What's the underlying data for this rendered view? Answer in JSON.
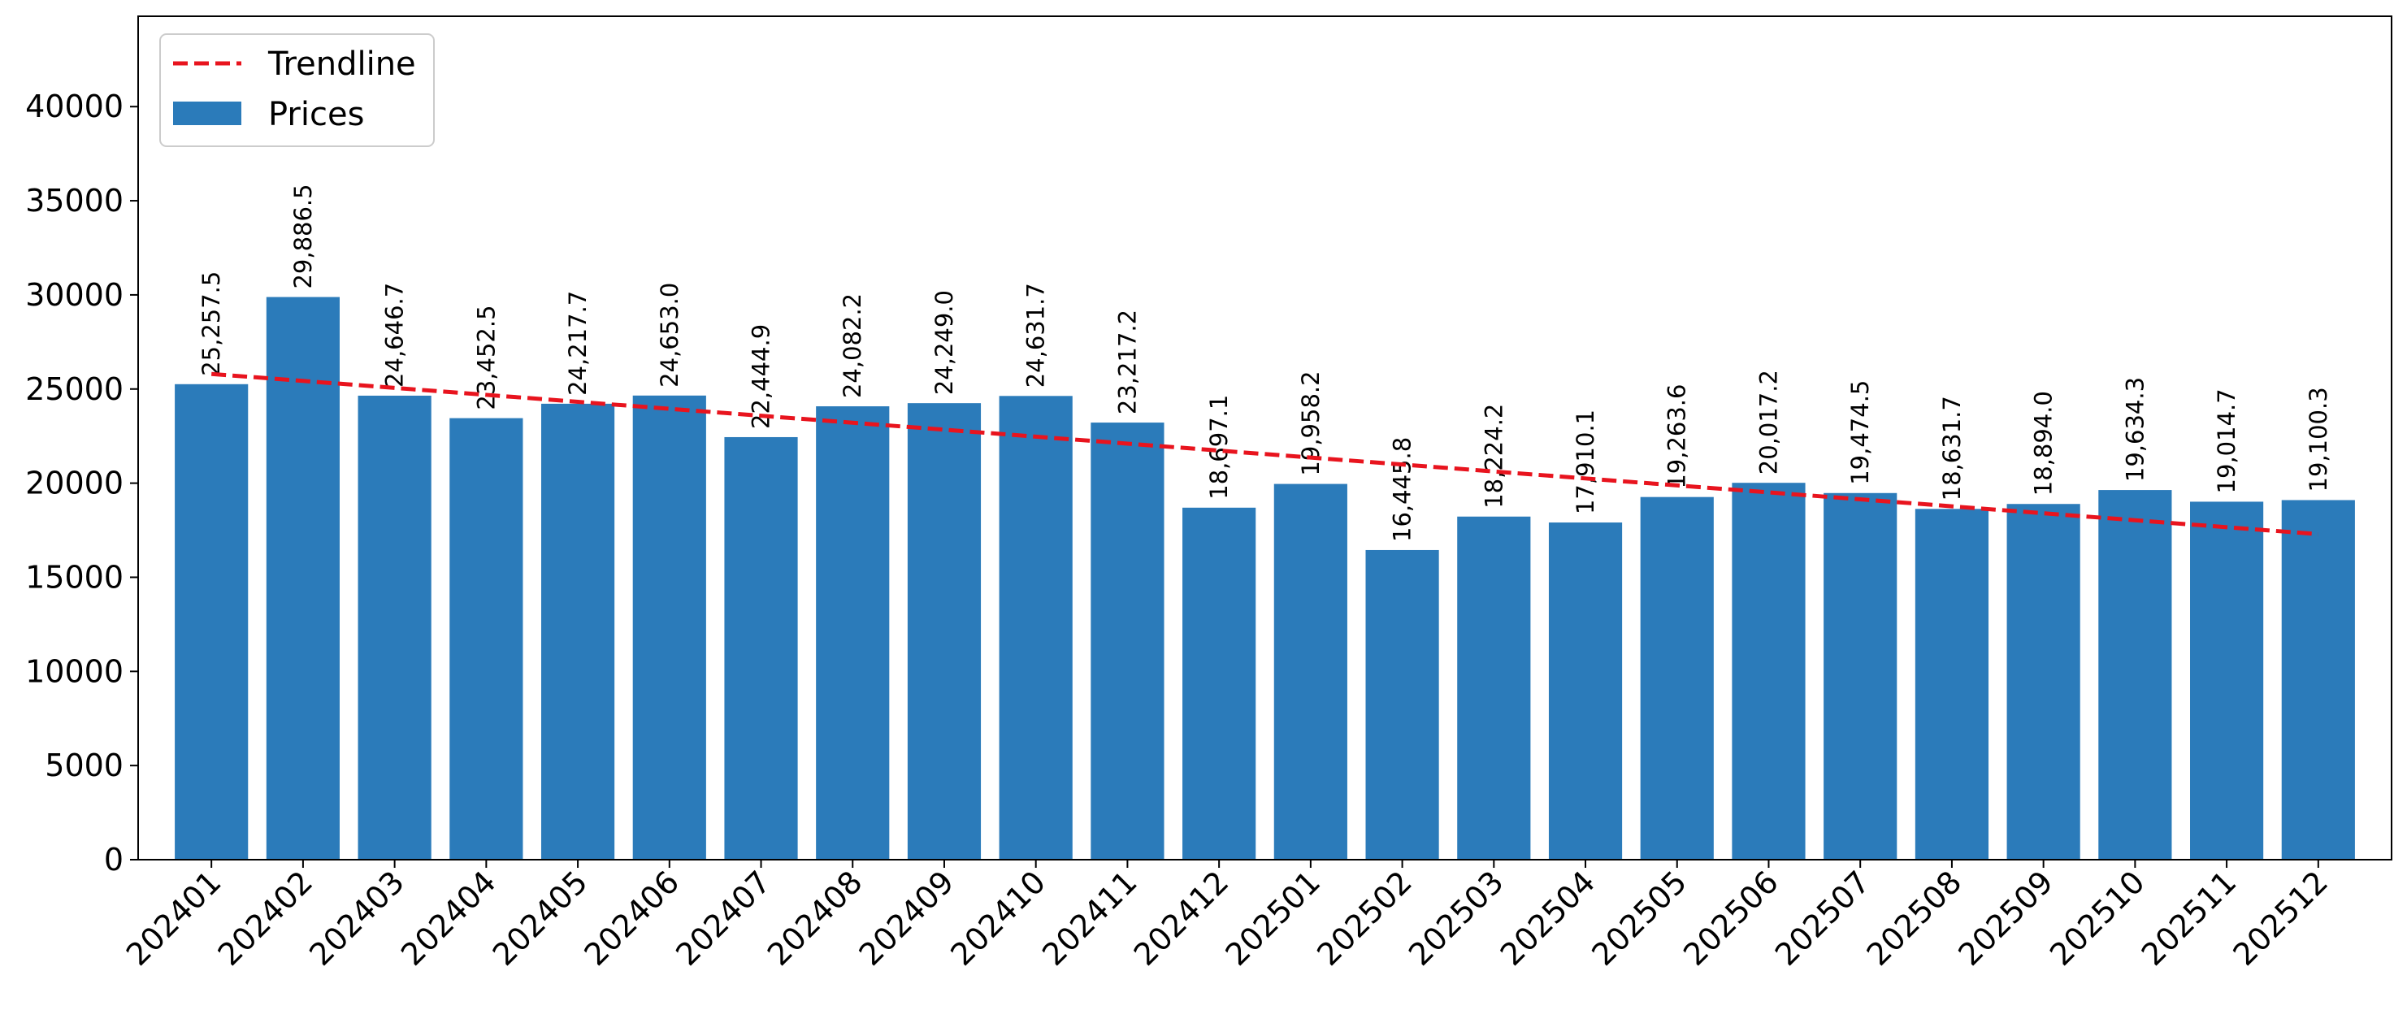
{
  "chart_data": {
    "type": "bar",
    "categories": [
      "202401",
      "202402",
      "202403",
      "202404",
      "202405",
      "202406",
      "202407",
      "202408",
      "202409",
      "202410",
      "202411",
      "202412",
      "202501",
      "202502",
      "202503",
      "202504",
      "202505",
      "202506",
      "202507",
      "202508",
      "202509",
      "202510",
      "202511",
      "202512"
    ],
    "series": [
      {
        "name": "Prices",
        "type": "bar",
        "color": "#2b7bba",
        "values": [
          25257.5,
          29886.5,
          24646.7,
          23452.5,
          24217.7,
          24653.0,
          22444.9,
          24082.2,
          24249.0,
          24631.7,
          23217.2,
          18697.1,
          19958.2,
          16445.8,
          18224.2,
          17910.1,
          19263.6,
          20017.2,
          19474.5,
          18631.7,
          18894.0,
          19634.3,
          19014.7,
          19100.3
        ],
        "data_labels": [
          "25,257.5",
          "29,886.5",
          "24,646.7",
          "23,452.5",
          "24,217.7",
          "24,653.0",
          "22,444.9",
          "24,082.2",
          "24,249.0",
          "24,631.7",
          "23,217.2",
          "18,697.1",
          "19,958.2",
          "16,445.8",
          "18,224.2",
          "17,910.1",
          "19,263.6",
          "20,017.2",
          "19,474.5",
          "18,631.7",
          "18,894.0",
          "19,634.3",
          "19,014.7",
          "19,100.3"
        ]
      },
      {
        "name": "Trendline",
        "type": "line",
        "style": "dashed",
        "color": "#e8141e",
        "values": [
          25800,
          25430,
          25060,
          24690,
          24320,
          23950,
          23580,
          23210,
          22840,
          22470,
          22100,
          21730,
          21360,
          20990,
          20620,
          20250,
          19880,
          19510,
          19140,
          18770,
          18400,
          18030,
          17660,
          17290
        ]
      }
    ],
    "ylim": [
      0,
      44800
    ],
    "yticks": [
      0,
      5000,
      10000,
      15000,
      20000,
      25000,
      30000,
      35000,
      40000
    ],
    "legend": "top-left",
    "grid": false,
    "title": "",
    "xlabel": "",
    "ylabel": ""
  }
}
